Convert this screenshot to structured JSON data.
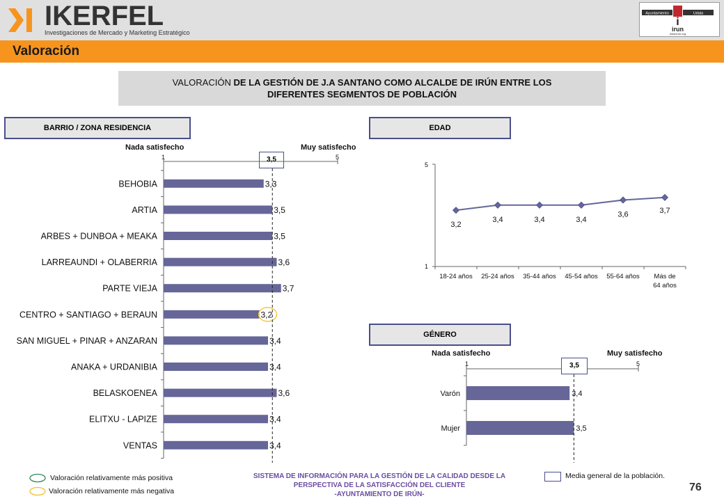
{
  "header": {
    "logo_word": "IKERFEL",
    "logo_tagline": "Investigaciones de Mercado y Marketing Estratégico",
    "partner_text": {
      "top_left": "Ayuntamiento",
      "top_right": "Udala",
      "word": "irun",
      "url": "www.irun.org"
    }
  },
  "page_title": "Valoración",
  "main_title": {
    "line1_normal": "VALORACIÓN ",
    "line1_bold": "DE LA GESTIÓN DE J.A SANTANO COMO ALCALDE DE IRÚN ENTRE LOS",
    "line2_bold": "DIFERENTES SEGMENTOS DE POBLACIÓN"
  },
  "sections": {
    "barrio": "BARRIO / ZONA RESIDENCIA",
    "edad": "EDAD",
    "genero": "GÉNERO"
  },
  "scale_labels": {
    "min_text": "Nada satisfecho",
    "max_text": "Muy satisfecho",
    "min_tick": "1",
    "max_tick": "5",
    "mean_box": "3,5"
  },
  "chart_data": [
    {
      "type": "bar",
      "orientation": "horizontal",
      "title": "BARRIO / ZONA RESIDENCIA",
      "categories": [
        "BEHOBIA",
        "ARTIA",
        "ARBES + DUNBOA + MEAKA",
        "LARREAUNDI + OLABERRIA",
        "PARTE VIEJA",
        "CENTRO + SANTIAGO + BERAUN",
        "SAN MIGUEL + PINAR + ANZARAN",
        "ANAKA + URDANIBIA",
        "BELASKOENEA",
        "ELITXU - LAPIZE",
        "VENTAS"
      ],
      "values": [
        3.3,
        3.5,
        3.5,
        3.6,
        3.7,
        3.2,
        3.4,
        3.4,
        3.6,
        3.4,
        3.4
      ],
      "value_labels": [
        "3,3",
        "3,5",
        "3,5",
        "3,6",
        "3,7",
        "3,2",
        "3,4",
        "3,4",
        "3,6",
        "3,4",
        "3,4"
      ],
      "xlim": [
        1,
        5
      ],
      "reference_line": 3.5,
      "highlight_negative": [
        "CENTRO + SANTIAGO + BERAUN"
      ],
      "bar_color": "#666699"
    },
    {
      "type": "line",
      "title": "EDAD",
      "categories": [
        "18-24 años",
        "25-24 años",
        "35-44 años",
        "45-54 años",
        "55-64 años",
        "Más de 64 años"
      ],
      "values": [
        3.2,
        3.4,
        3.4,
        3.4,
        3.6,
        3.7
      ],
      "value_labels": [
        "3,2",
        "3,4",
        "3,4",
        "3,4",
        "3,6",
        "3,7"
      ],
      "ylim": [
        1,
        5
      ],
      "y_ticks": [
        "5",
        "1"
      ],
      "line_color": "#666699"
    },
    {
      "type": "bar",
      "orientation": "horizontal",
      "title": "GÉNERO",
      "categories": [
        "Varón",
        "Mujer"
      ],
      "values": [
        3.4,
        3.5
      ],
      "value_labels": [
        "3,4",
        "3,5"
      ],
      "xlim": [
        1,
        5
      ],
      "reference_line": 3.5,
      "bar_color": "#666699"
    }
  ],
  "legend": {
    "positive": "Valoración relativamente más positiva",
    "negative": "Valoración relativamente más negativa",
    "mean": "Media general de la población.",
    "positive_color": "#2e8b57",
    "negative_color": "#f0c030"
  },
  "footer": {
    "line1": "SISTEMA DE INFORMACIÓN PARA LA GESTIÓN DE LA CALIDAD DESDE LA",
    "line2": "PERSPECTIVA DE LA SATISFACCIÓN DEL CLIENTE",
    "line3": "-AYUNTAMIENTO DE IRÚN-",
    "page_number": "76"
  }
}
